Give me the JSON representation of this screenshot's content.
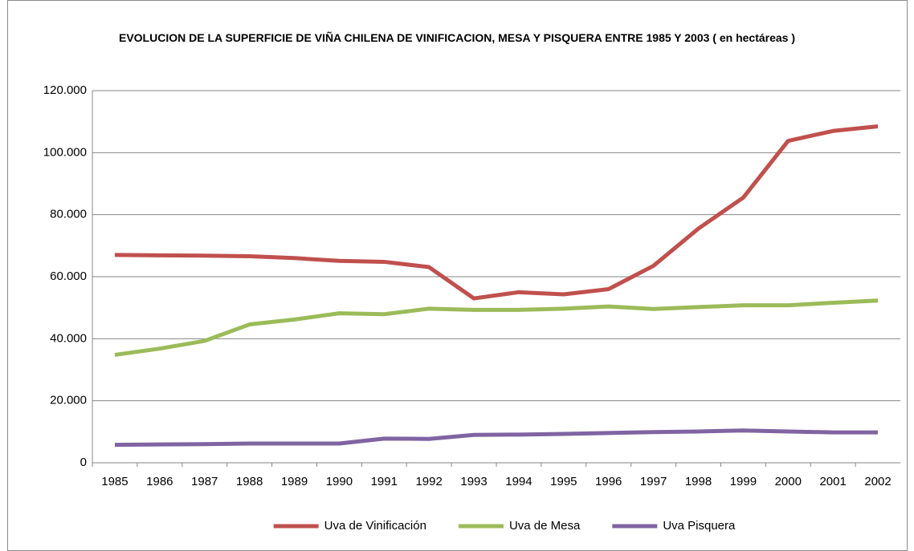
{
  "chart_data": {
    "type": "line",
    "title": "EVOLUCION DE LA SUPERFICIE DE VIÑA CHILENA DE VINIFICACION, MESA Y PISQUERA ENTRE 1985 Y 2003 ( en hectáreas )",
    "categories": [
      "1985",
      "1986",
      "1987",
      "1988",
      "1989",
      "1990",
      "1991",
      "1992",
      "1993",
      "1994",
      "1995",
      "1996",
      "1997",
      "1998",
      "1999",
      "2000",
      "2001",
      "2002"
    ],
    "series": [
      {
        "name": "Uva de Vinificación",
        "color": "#c0504d",
        "values": [
          67000,
          66900,
          66800,
          66600,
          66000,
          65100,
          64800,
          63100,
          53000,
          55000,
          54300,
          56000,
          63500,
          75500,
          85500,
          103800,
          107000,
          108500
        ]
      },
      {
        "name": "Uva de Mesa",
        "color": "#9bbb59",
        "values": [
          34800,
          36800,
          39300,
          44600,
          46200,
          48200,
          47900,
          49700,
          49300,
          49300,
          49700,
          50400,
          49600,
          50200,
          50800,
          50800,
          51600,
          52300
        ]
      },
      {
        "name": "Uva Pisquera",
        "color": "#8064a2",
        "values": [
          5800,
          5900,
          6000,
          6200,
          6200,
          6200,
          7800,
          7700,
          9000,
          9100,
          9300,
          9600,
          9900,
          10100,
          10400,
          10100,
          9800,
          9800
        ]
      }
    ],
    "ylim": [
      0,
      120000
    ],
    "yticks": [
      0,
      {
        "value": 20000,
        "label": "20.000"
      },
      {
        "value": 40000,
        "label": "40.000"
      },
      {
        "value": 60000,
        "label": "60.000"
      },
      {
        "value": 80000,
        "label": "80.000"
      },
      {
        "value": 100000,
        "label": "100.000"
      },
      {
        "value": 120000,
        "label": "120.000"
      }
    ],
    "grid": true,
    "legend": "bottom"
  }
}
